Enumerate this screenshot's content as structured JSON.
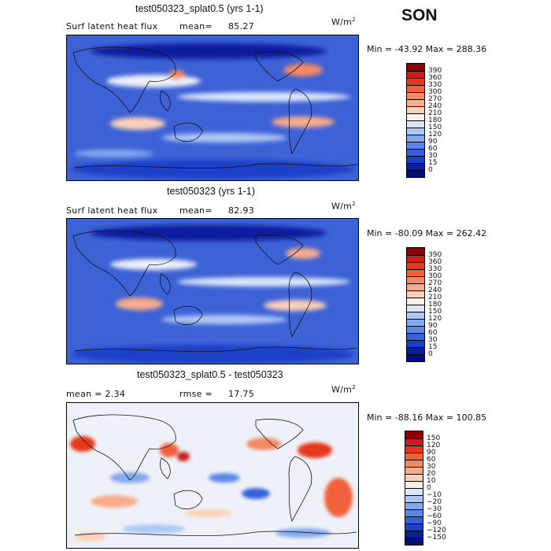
{
  "season": "SON",
  "panels": [
    {
      "title": "test050323_splat0.5 (yrs 1-1)",
      "left_label": "Surf latent heat flux",
      "stat_label": "mean=",
      "stat_value": "85.27",
      "units_base": "W/m",
      "units_exp": "2",
      "minmax": "Min = -43.92 Max = 288.36",
      "colorbar_levels": [
        "390",
        "360",
        "330",
        "300",
        "270",
        "240",
        "210",
        "180",
        "150",
        "120",
        "90",
        "60",
        "30",
        "15",
        "0"
      ],
      "colorbar_colors": [
        "#8b0000",
        "#c81e1e",
        "#e5391f",
        "#f0613a",
        "#f58962",
        "#f8ac8c",
        "#fbd0b8",
        "#fef0e6",
        "#dbe6fa",
        "#aec8f5",
        "#84a8ee",
        "#5a86e6",
        "#3562d9",
        "#1a3fc8",
        "#0b1e9c",
        "#00107a"
      ],
      "mean_color": "#3d62d6"
    },
    {
      "title": "test050323 (yrs 1-1)",
      "left_label": "Surf latent heat flux",
      "stat_label": "mean=",
      "stat_value": "82.93",
      "units_base": "W/m",
      "units_exp": "2",
      "minmax": "Min = -80.09 Max = 262.42",
      "colorbar_levels": [
        "390",
        "360",
        "330",
        "300",
        "270",
        "240",
        "210",
        "180",
        "150",
        "120",
        "90",
        "60",
        "30",
        "15",
        "0"
      ],
      "colorbar_colors": [
        "#8b0000",
        "#c81e1e",
        "#e5391f",
        "#f0613a",
        "#f58962",
        "#f8ac8c",
        "#fbd0b8",
        "#fef0e6",
        "#dbe6fa",
        "#aec8f5",
        "#84a8ee",
        "#5a86e6",
        "#3562d9",
        "#1a3fc8",
        "#0b1e9c",
        "#00107a"
      ],
      "mean_color": "#3d62d6"
    },
    {
      "title": "test050323_splat0.5 - test050323",
      "left_label": "mean =    2.34",
      "stat_label": "rmse =",
      "stat_value": "17.75",
      "units_base": "W/m",
      "units_exp": "2",
      "minmax": "Min = -88.16 Max = 100.85",
      "colorbar_levels": [
        "150",
        "120",
        "90",
        "60",
        "30",
        "20",
        "10",
        "0",
        "−10",
        "−20",
        "−30",
        "−60",
        "−90",
        "−120",
        "−150"
      ],
      "colorbar_colors": [
        "#8b0000",
        "#c81e1e",
        "#e5391f",
        "#f0613a",
        "#f58962",
        "#f8ac8c",
        "#fbd0b8",
        "#fef0e6",
        "#dbe6fa",
        "#aec8f5",
        "#84a8ee",
        "#5a86e6",
        "#3562d9",
        "#1a3fc8",
        "#0b1e9c",
        "#00107a"
      ],
      "mean_color": "#eef2f8"
    }
  ]
}
